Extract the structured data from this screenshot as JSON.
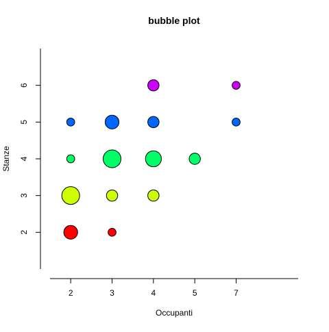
{
  "chart_data": {
    "type": "scatter",
    "title": "bubble plot",
    "xlabel": "Occupanti",
    "ylabel": "Stanze",
    "x_ticks": [
      "2",
      "3",
      "4",
      "5",
      "7"
    ],
    "y_ticks": [
      "2",
      "3",
      "4",
      "5",
      "6"
    ],
    "xlim": [
      0.5,
      6.5
    ],
    "ylim": [
      1,
      7
    ],
    "grid": false,
    "legend": "none",
    "points": [
      {
        "x": "2",
        "y": 2,
        "size": 3,
        "color": "#FF0000"
      },
      {
        "x": "3",
        "y": 2,
        "size": 1,
        "color": "#FF0000"
      },
      {
        "x": "2",
        "y": 3,
        "size": 5,
        "color": "#CCFF00"
      },
      {
        "x": "3",
        "y": 3,
        "size": 2,
        "color": "#CCFF00"
      },
      {
        "x": "4",
        "y": 3,
        "size": 2,
        "color": "#CCFF00"
      },
      {
        "x": "2",
        "y": 4,
        "size": 1,
        "color": "#00FF66"
      },
      {
        "x": "3",
        "y": 4,
        "size": 5,
        "color": "#00FF66"
      },
      {
        "x": "4",
        "y": 4,
        "size": 4,
        "color": "#00FF66"
      },
      {
        "x": "5",
        "y": 4,
        "size": 2,
        "color": "#00FF66"
      },
      {
        "x": "2",
        "y": 5,
        "size": 1,
        "color": "#0066FF"
      },
      {
        "x": "3",
        "y": 5,
        "size": 3,
        "color": "#0066FF"
      },
      {
        "x": "4",
        "y": 5,
        "size": 2,
        "color": "#0066FF"
      },
      {
        "x": "7",
        "y": 5,
        "size": 1,
        "color": "#0066FF"
      },
      {
        "x": "4",
        "y": 6,
        "size": 2,
        "color": "#CC00FF"
      },
      {
        "x": "7",
        "y": 6,
        "size": 1,
        "color": "#CC00FF"
      }
    ]
  }
}
